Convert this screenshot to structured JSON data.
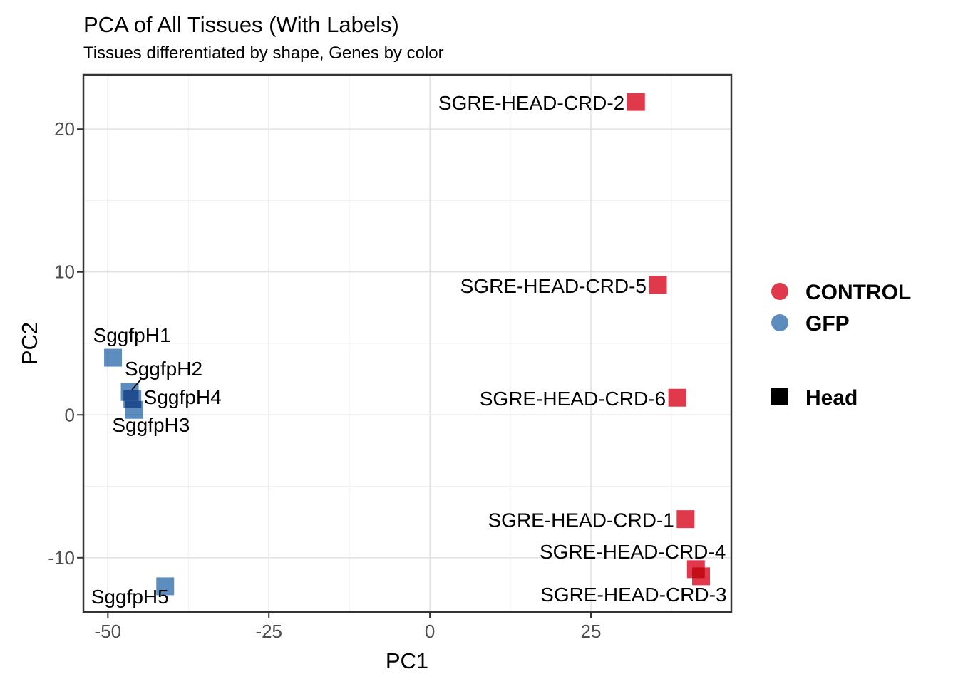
{
  "chart_data": {
    "type": "scatter",
    "title": "PCA of All Tissues (With Labels)",
    "subtitle": "Tissues differentiated by shape, Genes by color",
    "xlabel": "PC1",
    "ylabel": "PC2",
    "xlim": [
      -53.8,
      46.8
    ],
    "ylim": [
      -13.8,
      23.8
    ],
    "x_ticks": [
      -50,
      -25,
      0,
      25
    ],
    "y_ticks": [
      -10,
      0,
      10,
      20
    ],
    "x_minor_ticks": [
      -37.5,
      -12.5,
      12.5,
      37.5
    ],
    "y_minor_ticks": [
      -5,
      5,
      15
    ],
    "grid": true,
    "legend_position": "right",
    "point_shape": "square",
    "series": [
      {
        "name": "CONTROL",
        "color": "#E0394B",
        "points": [
          {
            "label": "SGRE-HEAD-CRD-2",
            "x": 32.0,
            "y": 21.9,
            "anchor": "end",
            "dx": -16,
            "dy": 1
          },
          {
            "label": "SGRE-HEAD-CRD-5",
            "x": 35.4,
            "y": 9.1,
            "anchor": "end",
            "dx": -16,
            "dy": 1
          },
          {
            "label": "SGRE-HEAD-CRD-6",
            "x": 38.4,
            "y": 1.2,
            "anchor": "end",
            "dx": -16,
            "dy": 1
          },
          {
            "label": "SGRE-HEAD-CRD-1",
            "x": 39.7,
            "y": -7.3,
            "anchor": "end",
            "dx": -16,
            "dy": 1
          },
          {
            "label": "SGRE-HEAD-CRD-4",
            "x": 41.3,
            "y": -10.8,
            "anchor": "end",
            "dx": 42,
            "dy": -25
          },
          {
            "label": "SGRE-HEAD-CRD-3",
            "x": 42.1,
            "y": -11.3,
            "anchor": "end",
            "dx": 36,
            "dy": 25
          }
        ]
      },
      {
        "name": "GFP",
        "color": "#5D8CBE",
        "points": [
          {
            "label": "SggfpH1",
            "x": -49.2,
            "y": 4.0,
            "anchor": "start",
            "dx": -28,
            "dy": -32
          },
          {
            "label": "SggfpH2",
            "x": -46.6,
            "y": 1.6,
            "anchor": "start",
            "dx": -7,
            "dy": -33,
            "leader": {
              "x1": 16,
              "y1": -18,
              "x2": 3,
              "y2": -3
            }
          },
          {
            "label": "SggfpH4",
            "x": -46.2,
            "y": 1.1,
            "anchor": "start",
            "dx": 16,
            "dy": -3
          },
          {
            "label": "SggfpH3",
            "x": -45.9,
            "y": 0.35,
            "anchor": "start",
            "dx": -31,
            "dy": 21
          },
          {
            "label": "SggfpH5",
            "x": -41.1,
            "y": -12.0,
            "anchor": "start",
            "dx": -104,
            "dy": 14
          }
        ]
      }
    ],
    "shape_legend": [
      {
        "label": "Head",
        "shape": "square",
        "color": "#000000"
      }
    ]
  }
}
